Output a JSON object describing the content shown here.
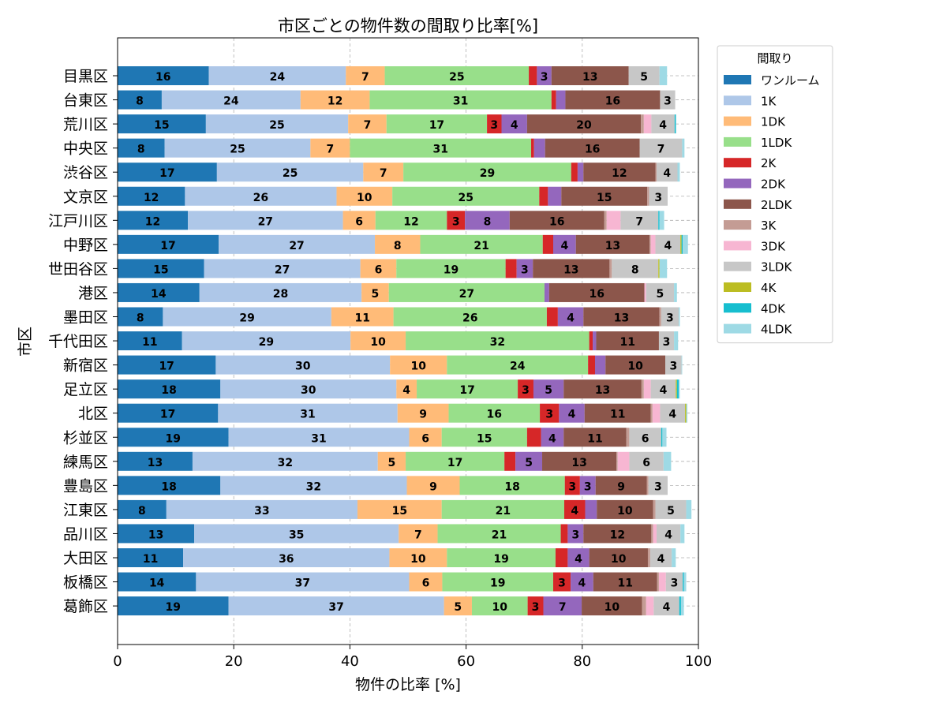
{
  "chart_data": {
    "type": "bar",
    "orientation": "horizontal",
    "stacked": true,
    "title": "市区ごとの物件数の間取り比率[%]",
    "xlabel": "物件の比率 [%]",
    "ylabel": "市区",
    "xlim": [
      0,
      100
    ],
    "xticks": [
      "0",
      "20",
      "40",
      "60",
      "80",
      "100"
    ],
    "grid": true,
    "legend": {
      "title": "間取り",
      "placement": "outside-upper-right"
    },
    "categories": [
      "目黒区",
      "台東区",
      "荒川区",
      "中央区",
      "渋谷区",
      "文京区",
      "江戸川区",
      "中野区",
      "世田谷区",
      "港区",
      "墨田区",
      "千代田区",
      "新宿区",
      "足立区",
      "北区",
      "杉並区",
      "練馬区",
      "豊島区",
      "江東区",
      "品川区",
      "大田区",
      "板橋区",
      "葛飾区"
    ],
    "series": [
      {
        "name": "ワンルーム",
        "color": "#1f77b4",
        "values": [
          15.7,
          7.6,
          15.2,
          8.1,
          17.1,
          11.6,
          12.1,
          17.4,
          14.9,
          14.1,
          7.8,
          11.1,
          16.9,
          17.7,
          17.3,
          19.1,
          12.9,
          17.7,
          8.4,
          13.2,
          11.3,
          13.5,
          19.1
        ]
      },
      {
        "name": "1K",
        "color": "#aec7e8",
        "values": [
          23.6,
          23.9,
          24.5,
          25.1,
          25.2,
          26.1,
          26.7,
          26.9,
          26.9,
          27.9,
          29.0,
          29.0,
          30.0,
          30.3,
          30.9,
          31.1,
          31.9,
          32.1,
          32.9,
          35.2,
          35.5,
          36.7,
          37.1
        ]
      },
      {
        "name": "1DK",
        "color": "#ffbb78",
        "values": [
          6.7,
          11.9,
          6.6,
          6.8,
          6.9,
          9.6,
          5.6,
          7.8,
          6.2,
          4.7,
          10.7,
          9.5,
          9.8,
          3.5,
          8.8,
          5.6,
          4.8,
          9.1,
          14.5,
          6.7,
          9.9,
          5.7,
          4.8
        ]
      },
      {
        "name": "1LDK",
        "color": "#98df8a",
        "values": [
          24.8,
          31.3,
          17.3,
          31.2,
          28.9,
          25.3,
          12.3,
          21.1,
          18.8,
          26.8,
          26.4,
          31.6,
          24.3,
          17.4,
          15.7,
          14.7,
          17.0,
          18.1,
          21.1,
          21.2,
          18.7,
          19.1,
          9.6
        ]
      },
      {
        "name": "2K",
        "color": "#d62728",
        "values": [
          1.4,
          0.8,
          2.5,
          0.5,
          1.1,
          1.5,
          3.1,
          1.8,
          1.9,
          0.0,
          1.9,
          0.6,
          1.2,
          2.7,
          3.3,
          2.4,
          1.9,
          2.6,
          3.6,
          1.2,
          2.1,
          3.0,
          2.7
        ]
      },
      {
        "name": "2DK",
        "color": "#9467bd",
        "values": [
          2.5,
          1.6,
          4.4,
          1.9,
          1.0,
          2.3,
          7.7,
          3.9,
          2.8,
          0.8,
          4.4,
          0.6,
          1.8,
          5.2,
          4.4,
          3.9,
          4.6,
          2.7,
          2.0,
          2.7,
          3.7,
          3.9,
          6.6
        ]
      },
      {
        "name": "2LDK",
        "color": "#8c564b",
        "values": [
          13.3,
          16.3,
          19.6,
          16.3,
          12.4,
          14.8,
          16.3,
          12.7,
          13.2,
          16.4,
          13.1,
          10.8,
          10.3,
          13.4,
          11.4,
          10.8,
          12.8,
          8.8,
          9.7,
          11.7,
          10.1,
          11.0,
          10.4
        ]
      },
      {
        "name": "3K",
        "color": "#c49c94",
        "values": [
          0.0,
          0.0,
          0.5,
          0.0,
          0.2,
          0.3,
          0.4,
          0.2,
          0.4,
          0.0,
          0.3,
          0.0,
          0.0,
          0.4,
          0.3,
          0.5,
          0.2,
          0.3,
          0.4,
          0.3,
          0.4,
          0.3,
          0.7
        ]
      },
      {
        "name": "3DK",
        "color": "#f7b6d2",
        "values": [
          0.0,
          0.0,
          1.3,
          0.0,
          0.0,
          0.0,
          2.4,
          0.8,
          0.0,
          0.3,
          0.0,
          0.0,
          0.0,
          1.2,
          1.3,
          0.0,
          2.0,
          0.0,
          0.0,
          0.6,
          0.0,
          1.2,
          1.3
        ]
      },
      {
        "name": "3LDK",
        "color": "#c7c7c7",
        "values": [
          5.3,
          2.6,
          4.0,
          7.3,
          3.6,
          3.2,
          6.5,
          4.3,
          8.0,
          4.8,
          3.0,
          2.6,
          2.8,
          4.3,
          4.3,
          5.5,
          5.9,
          3.3,
          5.3,
          4.1,
          3.7,
          2.9,
          4.4
        ]
      },
      {
        "name": "4K",
        "color": "#bcbd22",
        "values": [
          0.0,
          0.0,
          0.0,
          0.0,
          0.0,
          0.0,
          0.0,
          0.2,
          0.2,
          0.0,
          0.0,
          0.0,
          0.0,
          0.2,
          0.2,
          0.0,
          0.0,
          0.0,
          0.0,
          0.0,
          0.0,
          0.0,
          0.0
        ]
      },
      {
        "name": "4DK",
        "color": "#17becf",
        "values": [
          0.0,
          0.0,
          0.2,
          0.0,
          0.0,
          0.0,
          0.2,
          0.2,
          0.0,
          0.0,
          0.0,
          0.0,
          0.0,
          0.3,
          0.0,
          0.2,
          0.0,
          0.0,
          0.0,
          0.0,
          0.0,
          0.2,
          0.3
        ]
      },
      {
        "name": "4LDK",
        "color": "#9edae5",
        "values": [
          1.3,
          0.0,
          0.1,
          0.4,
          0.4,
          0.0,
          0.8,
          0.9,
          1.3,
          0.5,
          0.2,
          0.7,
          0.1,
          0.2,
          0.2,
          0.7,
          1.3,
          0.0,
          0.9,
          0.7,
          0.7,
          0.4,
          0.5
        ]
      }
    ]
  }
}
